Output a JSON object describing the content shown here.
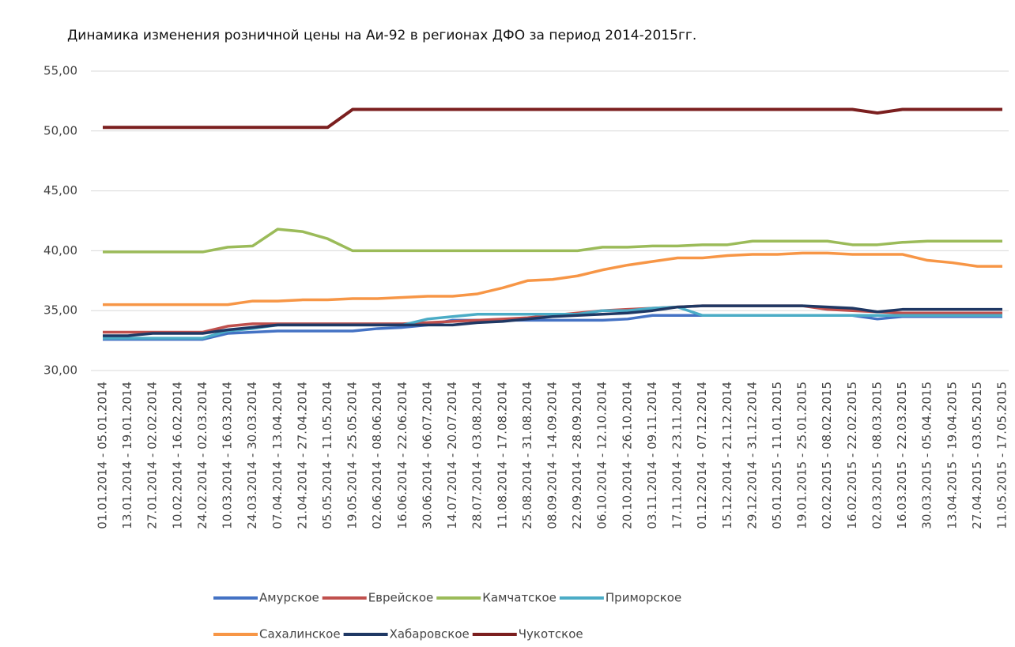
{
  "chart_data": {
    "type": "line",
    "title": "Динамика изменения розничной цены на Аи-92 в регионах ДФО за период 2014-2015гг.",
    "categories": [
      "01.01.2014 - 05.01.2014",
      "13.01.2014 - 19.01.2014",
      "27.01.2014 - 02.02.2014",
      "10.02.2014 - 16.02.2014",
      "24.02.2014 - 02.03.2014",
      "10.03.2014 - 16.03.2014",
      "24.03.2014 - 30.03.2014",
      "07.04.2014 - 13.04.2014",
      "21.04.2014 - 27.04.2014",
      "05.05.2014 - 11.05.2014",
      "19.05.2014 - 25.05.2014",
      "02.06.2014 - 08.06.2014",
      "16.06.2014 - 22.06.2014",
      "30.06.2014 - 06.07.2014",
      "14.07.2014 - 20.07.2014",
      "28.07.2014 - 03.08.2014",
      "11.08.2014 - 17.08.2014",
      "25.08.2014 - 31.08.2014",
      "08.09.2014 - 14.09.2014",
      "22.09.2014 - 28.09.2014",
      "06.10.2014 - 12.10.2014",
      "20.10.2014 - 26.10.2014",
      "03.11.2014 - 09.11.2014",
      "17.11.2014 - 23.11.2014",
      "01.12.2014 - 07.12.2014",
      "15.12.2014 - 21.12.2014",
      "29.12.2014 - 31.12.2014",
      "05.01.2015 - 11.01.2015",
      "19.01.2015 - 25.01.2015",
      "02.02.2015 - 08.02.2015",
      "16.02.2015 - 22.02.2015",
      "02.03.2015 - 08.03.2015",
      "16.03.2015 - 22.03.2015",
      "30.03.2015 - 05.04.2015",
      "13.04.2015 - 19.04.2015",
      "27.04.2015 - 03.05.2015",
      "11.05.2015 - 17.05.2015"
    ],
    "series": [
      {
        "name": "Амурское",
        "color": "#4472c4",
        "values": [
          32.6,
          32.6,
          32.6,
          32.6,
          32.6,
          33.1,
          33.2,
          33.3,
          33.3,
          33.3,
          33.3,
          33.5,
          33.6,
          33.8,
          34.2,
          34.2,
          34.2,
          34.2,
          34.2,
          34.2,
          34.2,
          34.3,
          34.6,
          34.6,
          34.6,
          34.6,
          34.6,
          34.6,
          34.6,
          34.6,
          34.6,
          34.3,
          34.5,
          34.5,
          34.5,
          34.5,
          34.5
        ]
      },
      {
        "name": "Еврейское",
        "color": "#c0504d",
        "values": [
          33.2,
          33.2,
          33.2,
          33.2,
          33.2,
          33.7,
          33.9,
          33.9,
          33.9,
          33.9,
          33.9,
          33.9,
          33.9,
          34.0,
          34.1,
          34.2,
          34.3,
          34.4,
          34.6,
          34.8,
          35.0,
          35.1,
          35.2,
          35.3,
          35.4,
          35.4,
          35.4,
          35.4,
          35.4,
          35.1,
          35.0,
          34.9,
          34.8,
          34.8,
          34.8,
          34.8,
          34.8
        ]
      },
      {
        "name": "Камчатское",
        "color": "#9bbb59",
        "values": [
          39.9,
          39.9,
          39.9,
          39.9,
          39.9,
          40.3,
          40.4,
          41.8,
          41.6,
          41.0,
          40.0,
          40.0,
          40.0,
          40.0,
          40.0,
          40.0,
          40.0,
          40.0,
          40.0,
          40.0,
          40.3,
          40.3,
          40.4,
          40.4,
          40.5,
          40.5,
          40.8,
          40.8,
          40.8,
          40.8,
          40.5,
          40.5,
          40.7,
          40.8,
          40.8,
          40.8,
          40.8
        ]
      },
      {
        "name": "Приморское",
        "color": "#4bacc6",
        "values": [
          32.7,
          32.7,
          32.7,
          32.7,
          32.7,
          33.3,
          33.5,
          33.8,
          33.8,
          33.8,
          33.8,
          33.8,
          33.8,
          34.3,
          34.5,
          34.7,
          34.7,
          34.7,
          34.7,
          34.7,
          35.0,
          35.0,
          35.2,
          35.3,
          34.6,
          34.6,
          34.6,
          34.6,
          34.6,
          34.6,
          34.6,
          34.6,
          34.6,
          34.6,
          34.6,
          34.6,
          34.6
        ]
      },
      {
        "name": "Сахалинское",
        "color": "#f79646",
        "values": [
          35.5,
          35.5,
          35.5,
          35.5,
          35.5,
          35.5,
          35.8,
          35.8,
          35.9,
          35.9,
          36.0,
          36.0,
          36.1,
          36.2,
          36.2,
          36.4,
          36.9,
          37.5,
          37.6,
          37.9,
          38.4,
          38.8,
          39.1,
          39.4,
          39.4,
          39.6,
          39.7,
          39.7,
          39.8,
          39.8,
          39.7,
          39.7,
          39.7,
          39.2,
          39.0,
          38.7,
          38.7
        ]
      },
      {
        "name": "Хабаровское",
        "color": "#1f3864",
        "values": [
          32.9,
          32.9,
          33.1,
          33.1,
          33.1,
          33.4,
          33.6,
          33.8,
          33.8,
          33.8,
          33.8,
          33.8,
          33.8,
          33.8,
          33.8,
          34.0,
          34.1,
          34.3,
          34.5,
          34.6,
          34.7,
          34.8,
          35.0,
          35.3,
          35.4,
          35.4,
          35.4,
          35.4,
          35.4,
          35.3,
          35.2,
          34.9,
          35.1,
          35.1,
          35.1,
          35.1,
          35.1
        ]
      },
      {
        "name": "Чукотское",
        "color": "#7b1f1f",
        "values": [
          50.3,
          50.3,
          50.3,
          50.3,
          50.3,
          50.3,
          50.3,
          50.3,
          50.3,
          50.3,
          51.8,
          51.8,
          51.8,
          51.8,
          51.8,
          51.8,
          51.8,
          51.8,
          51.8,
          51.8,
          51.8,
          51.8,
          51.8,
          51.8,
          51.8,
          51.8,
          51.8,
          51.8,
          51.8,
          51.8,
          51.8,
          51.5,
          51.8,
          51.8,
          51.8,
          51.8,
          51.8
        ]
      }
    ],
    "ylim": [
      30,
      55
    ],
    "yticks": [
      {
        "value": 30,
        "label": "30,00"
      },
      {
        "value": 35,
        "label": "35,00"
      },
      {
        "value": 40,
        "label": "40,00"
      },
      {
        "value": 45,
        "label": "45,00"
      },
      {
        "value": 50,
        "label": "50,00"
      },
      {
        "value": 55,
        "label": "55,00"
      }
    ],
    "grid": true,
    "legend": "bottom"
  }
}
